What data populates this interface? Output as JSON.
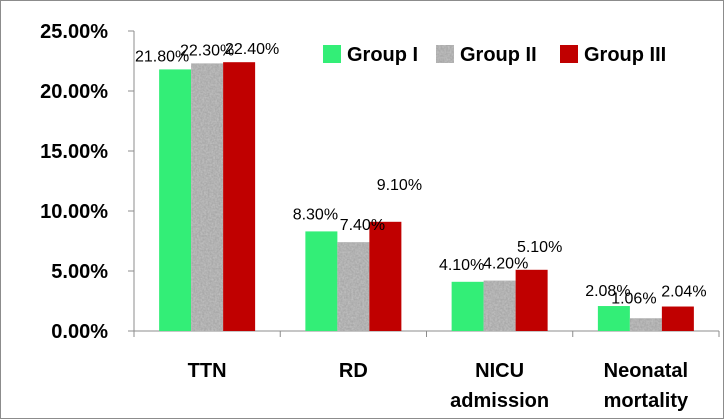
{
  "chart_data": {
    "type": "bar",
    "categories": [
      [
        "TTN"
      ],
      [
        "RD"
      ],
      [
        "NICU",
        "admission"
      ],
      [
        "Neonatal",
        "mortality"
      ]
    ],
    "series": [
      {
        "name": "Group I",
        "values": [
          21.8,
          8.3,
          4.1,
          2.08
        ],
        "labels": [
          "21.80%",
          "8.30%",
          "4.10%",
          "2.08%"
        ],
        "color": "#33ee77",
        "pattern": "solid"
      },
      {
        "name": "Group II",
        "values": [
          22.3,
          7.4,
          4.2,
          1.06
        ],
        "labels": [
          "22.30%",
          "7.40%",
          "4.20%",
          "1.06%"
        ],
        "color": "#a8a8a8",
        "pattern": "granite"
      },
      {
        "name": "Group III",
        "values": [
          22.4,
          9.1,
          5.1,
          2.04
        ],
        "labels": [
          "22.40%",
          "9.10%",
          "5.10%",
          "2.04%"
        ],
        "color": "#c00000",
        "pattern": "solid"
      }
    ],
    "ylim": [
      0,
      25
    ],
    "yticks": [
      0,
      5,
      10,
      15,
      20,
      25
    ],
    "ytick_labels": [
      "0.00%",
      "5.00%",
      "10.00%",
      "15.00%",
      "20.00%",
      "25.00%"
    ],
    "legend_position": "top-right",
    "grid": false
  }
}
